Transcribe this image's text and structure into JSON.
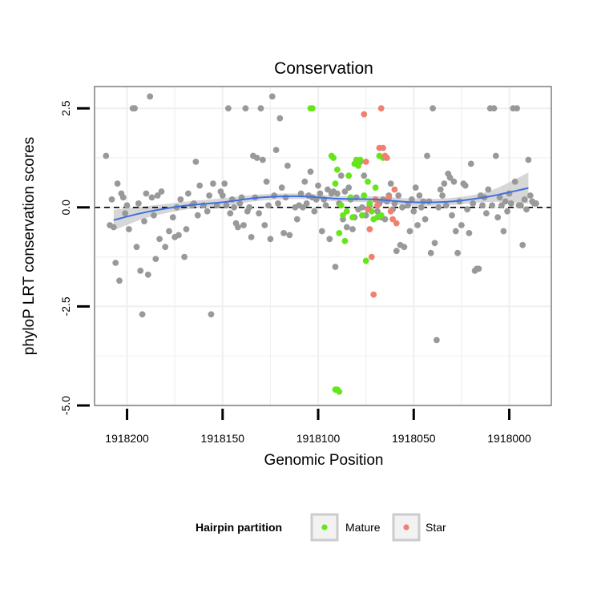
{
  "colors": {
    "other": "#999999",
    "mature": "#66e61a",
    "star": "#f08070",
    "smooth": "#3f6fe0",
    "ribbon": "#d0d0d0",
    "panel_border": "#7f7f7f",
    "grid": "#f0f0f0",
    "zero_line": "#000000"
  },
  "chart_data": {
    "type": "scatter",
    "title": "Conservation",
    "xlabel": "Genomic Position",
    "ylabel": "phyloP LRT conservation scores",
    "xlim": [
      1918217,
      1917978
    ],
    "x_reversed": true,
    "ylim": [
      -5.0,
      3.05
    ],
    "x_ticks": [
      1918200,
      1918150,
      1918100,
      1918050,
      1918000
    ],
    "x_tick_labels": [
      "1918200",
      "1918150",
      "1918100",
      "1918050",
      "1918000"
    ],
    "y_ticks": [
      -5.0,
      -2.5,
      0.0,
      2.5
    ],
    "y_tick_labels": [
      "-5.0",
      "-2.5",
      "0.0",
      "2.5"
    ],
    "grid": true,
    "reference_line": {
      "y": 0,
      "style": "dashed"
    },
    "smooth": {
      "x": [
        1918207,
        1918190,
        1918170,
        1918150,
        1918130,
        1918110,
        1918090,
        1918070,
        1918050,
        1918030,
        1918010,
        1917990
      ],
      "y": [
        -0.32,
        -0.12,
        0.04,
        0.13,
        0.25,
        0.28,
        0.22,
        0.2,
        0.13,
        0.15,
        0.28,
        0.49
      ],
      "lower": [
        -0.58,
        -0.27,
        -0.06,
        0.03,
        0.17,
        0.21,
        0.15,
        0.12,
        0.04,
        0.06,
        0.14,
        0.1
      ],
      "upper": [
        -0.06,
        0.03,
        0.14,
        0.23,
        0.33,
        0.35,
        0.29,
        0.28,
        0.22,
        0.24,
        0.42,
        0.88
      ]
    },
    "legend": {
      "title": "Hairpin partition",
      "position": "bottom",
      "entries": [
        {
          "name": "Mature",
          "color": "#66e61a"
        },
        {
          "name": "Star",
          "color": "#f08070"
        }
      ]
    },
    "series": [
      {
        "group": "other",
        "points": [
          [
            1918211,
            1.3
          ],
          [
            1918209,
            -0.45
          ],
          [
            1918208,
            0.2
          ],
          [
            1918207,
            -0.5
          ],
          [
            1918206,
            -1.4
          ],
          [
            1918205,
            0.6
          ],
          [
            1918204,
            -1.85
          ],
          [
            1918203,
            0.35
          ],
          [
            1918202,
            0.25
          ],
          [
            1918201,
            -0.15
          ],
          [
            1918200,
            0.05
          ],
          [
            1918199,
            -0.55
          ],
          [
            1918197,
            2.5
          ],
          [
            1918196,
            2.5
          ],
          [
            1918195,
            -1.0
          ],
          [
            1918194,
            0.1
          ],
          [
            1918193,
            -1.6
          ],
          [
            1918192,
            -2.7
          ],
          [
            1918191,
            -0.35
          ],
          [
            1918190,
            0.35
          ],
          [
            1918189,
            -1.7
          ],
          [
            1918188,
            2.8
          ],
          [
            1918187,
            0.25
          ],
          [
            1918186,
            -0.2
          ],
          [
            1918185,
            -1.3
          ],
          [
            1918184,
            0.3
          ],
          [
            1918183,
            -0.8
          ],
          [
            1918182,
            0.4
          ],
          [
            1918180,
            -1.0
          ],
          [
            1918178,
            -0.6
          ],
          [
            1918176,
            -0.25
          ],
          [
            1918175,
            -0.75
          ],
          [
            1918174,
            0.0
          ],
          [
            1918173,
            -0.7
          ],
          [
            1918172,
            0.2
          ],
          [
            1918170,
            -1.25
          ],
          [
            1918169,
            -0.55
          ],
          [
            1918168,
            0.35
          ],
          [
            1918166,
            0.05
          ],
          [
            1918165,
            0.1
          ],
          [
            1918164,
            1.15
          ],
          [
            1918163,
            -0.2
          ],
          [
            1918162,
            0.55
          ],
          [
            1918160,
            0.05
          ],
          [
            1918158,
            -0.1
          ],
          [
            1918157,
            0.3
          ],
          [
            1918156,
            -2.7
          ],
          [
            1918155,
            0.6
          ],
          [
            1918153,
            0.05
          ],
          [
            1918151,
            0.4
          ],
          [
            1918150,
            0.3
          ],
          [
            1918149,
            0.6
          ],
          [
            1918148,
            0.05
          ],
          [
            1918147,
            2.5
          ],
          [
            1918146,
            -0.15
          ],
          [
            1918145,
            0.2
          ],
          [
            1918144,
            0.0
          ],
          [
            1918143,
            -0.4
          ],
          [
            1918142,
            -0.5
          ],
          [
            1918141,
            0.1
          ],
          [
            1918140,
            0.25
          ],
          [
            1918139,
            -0.45
          ],
          [
            1918138,
            2.5
          ],
          [
            1918137,
            -0.1
          ],
          [
            1918136,
            0.0
          ],
          [
            1918135,
            -0.75
          ],
          [
            1918134,
            1.3
          ],
          [
            1918133,
            0.25
          ],
          [
            1918132,
            1.25
          ],
          [
            1918131,
            -0.15
          ],
          [
            1918130,
            2.5
          ],
          [
            1918129,
            1.2
          ],
          [
            1918128,
            -0.45
          ],
          [
            1918127,
            0.65
          ],
          [
            1918126,
            0.05
          ],
          [
            1918125,
            -0.8
          ],
          [
            1918124,
            2.8
          ],
          [
            1918123,
            0.3
          ],
          [
            1918122,
            1.45
          ],
          [
            1918121,
            0.1
          ],
          [
            1918120,
            2.25
          ],
          [
            1918119,
            0.5
          ],
          [
            1918118,
            -0.65
          ],
          [
            1918117,
            0.25
          ],
          [
            1918116,
            1.05
          ],
          [
            1918115,
            -0.7
          ],
          [
            1918112,
            0.0
          ],
          [
            1918111,
            -0.3
          ],
          [
            1918110,
            0.05
          ],
          [
            1918109,
            0.35
          ],
          [
            1918108,
            0.0
          ],
          [
            1918107,
            0.65
          ],
          [
            1918106,
            0.1
          ],
          [
            1918105,
            0.3
          ],
          [
            1918104,
            0.9
          ],
          [
            1918103,
            0.25
          ],
          [
            1918102,
            -0.1
          ],
          [
            1918101,
            0.2
          ],
          [
            1918100,
            0.55
          ],
          [
            1918099,
            0.35
          ],
          [
            1918098,
            -0.6
          ],
          [
            1918097,
            0.2
          ],
          [
            1918096,
            0.05
          ],
          [
            1918095,
            0.45
          ],
          [
            1918094,
            -0.8
          ],
          [
            1918093,
            0.35
          ],
          [
            1918092,
            0.4
          ],
          [
            1918091,
            -1.5
          ],
          [
            1918090,
            0.35
          ],
          [
            1918089,
            0.1
          ],
          [
            1918088,
            0.8
          ],
          [
            1918087,
            -0.3
          ],
          [
            1918086,
            0.4
          ],
          [
            1918085,
            -0.5
          ],
          [
            1918084,
            0.5
          ],
          [
            1918083,
            0.2
          ],
          [
            1918082,
            -0.55
          ],
          [
            1918081,
            -0.25
          ],
          [
            1918080,
            0.25
          ],
          [
            1918079,
            -0.05
          ],
          [
            1918078,
            1.15
          ],
          [
            1918077,
            0.0
          ],
          [
            1918076,
            0.8
          ],
          [
            1918075,
            -0.2
          ],
          [
            1918074,
            -0.05
          ],
          [
            1918073,
            0.05
          ],
          [
            1918069,
            -0.1
          ],
          [
            1918068,
            0.1
          ],
          [
            1918067,
            -0.25
          ],
          [
            1918066,
            0.2
          ],
          [
            1918065,
            -0.3
          ],
          [
            1918064,
            0.15
          ],
          [
            1918063,
            0.3
          ],
          [
            1918062,
            0.6
          ],
          [
            1918061,
            -0.05
          ],
          [
            1918060,
            0.1
          ],
          [
            1918059,
            -1.1
          ],
          [
            1918058,
            0.3
          ],
          [
            1918057,
            -0.95
          ],
          [
            1918056,
            0.0
          ],
          [
            1918055,
            -1.0
          ],
          [
            1918053,
            0.05
          ],
          [
            1918052,
            -0.6
          ],
          [
            1918051,
            0.2
          ],
          [
            1918050,
            -0.1
          ],
          [
            1918049,
            0.5
          ],
          [
            1918048,
            -0.45
          ],
          [
            1918047,
            0.3
          ],
          [
            1918046,
            0.0
          ],
          [
            1918045,
            0.15
          ],
          [
            1918044,
            -0.3
          ],
          [
            1918043,
            1.3
          ],
          [
            1918042,
            0.15
          ],
          [
            1918041,
            -1.15
          ],
          [
            1918040,
            2.5
          ],
          [
            1918039,
            -0.9
          ],
          [
            1918038,
            -3.35
          ],
          [
            1918037,
            0.0
          ],
          [
            1918036,
            0.45
          ],
          [
            1918035,
            0.3
          ],
          [
            1918034,
            0.6
          ],
          [
            1918033,
            0.05
          ],
          [
            1918032,
            0.85
          ],
          [
            1918031,
            0.75
          ],
          [
            1918030,
            -0.2
          ],
          [
            1918029,
            0.65
          ],
          [
            1918028,
            -0.6
          ],
          [
            1918027,
            -1.15
          ],
          [
            1918026,
            0.15
          ],
          [
            1918025,
            -0.45
          ],
          [
            1918024,
            0.6
          ],
          [
            1918023,
            0.55
          ],
          [
            1918022,
            -0.05
          ],
          [
            1918021,
            -0.65
          ],
          [
            1918020,
            1.1
          ],
          [
            1918019,
            0.1
          ],
          [
            1918018,
            -1.6
          ],
          [
            1918017,
            -1.55
          ],
          [
            1918016,
            -1.55
          ],
          [
            1918015,
            0.3
          ],
          [
            1918014,
            0.05
          ],
          [
            1918013,
            0.25
          ],
          [
            1918012,
            -0.15
          ],
          [
            1918011,
            0.45
          ],
          [
            1918010,
            2.5
          ],
          [
            1918009,
            0.05
          ],
          [
            1918008,
            2.5
          ],
          [
            1918007,
            1.3
          ],
          [
            1918006,
            -0.25
          ],
          [
            1918005,
            0.25
          ],
          [
            1918004,
            0.05
          ],
          [
            1918003,
            -0.6
          ],
          [
            1918002,
            0.15
          ],
          [
            1918001,
            -0.1
          ],
          [
            1918000,
            0.35
          ],
          [
            1917999,
            0.1
          ],
          [
            1917998,
            2.5
          ],
          [
            1917997,
            0.65
          ],
          [
            1917996,
            2.5
          ],
          [
            1917995,
            0.05
          ],
          [
            1917994,
            0.05
          ],
          [
            1917993,
            -0.95
          ],
          [
            1917992,
            0.2
          ],
          [
            1917991,
            -0.05
          ],
          [
            1917990,
            1.2
          ],
          [
            1917989,
            0.3
          ],
          [
            1917988,
            0.15
          ],
          [
            1917987,
            0.1
          ],
          [
            1917986,
            0.1
          ]
        ]
      },
      {
        "name": "Mature",
        "points": [
          [
            1918104,
            2.5
          ],
          [
            1918103,
            2.5
          ],
          [
            1918093,
            1.3
          ],
          [
            1918092,
            1.25
          ],
          [
            1918091,
            0.6
          ],
          [
            1918090,
            0.95
          ],
          [
            1918089,
            -0.65
          ],
          [
            1918088,
            0.05
          ],
          [
            1918087,
            -0.2
          ],
          [
            1918086,
            -0.85
          ],
          [
            1918085,
            -0.1
          ],
          [
            1918084,
            0.8
          ],
          [
            1918083,
            0.25
          ],
          [
            1918082,
            -0.25
          ],
          [
            1918081,
            1.1
          ],
          [
            1918080,
            1.2
          ],
          [
            1918079,
            1.05
          ],
          [
            1918078,
            1.2
          ],
          [
            1918077,
            -0.2
          ],
          [
            1918076,
            0.3
          ],
          [
            1918075,
            -1.35
          ],
          [
            1918074,
            0.65
          ],
          [
            1918073,
            0.1
          ],
          [
            1918072,
            -0.1
          ],
          [
            1918071,
            -0.3
          ],
          [
            1918070,
            0.5
          ],
          [
            1918069,
            -0.25
          ],
          [
            1918068,
            1.3
          ],
          [
            1918067,
            -0.2
          ],
          [
            1918066,
            1.25
          ],
          [
            1918091,
            -4.6
          ],
          [
            1918090,
            -4.6
          ],
          [
            1918089,
            -4.65
          ]
        ]
      },
      {
        "name": "Star",
        "points": [
          [
            1918076,
            2.35
          ],
          [
            1918075,
            1.15
          ],
          [
            1918074,
            -0.05
          ],
          [
            1918073,
            -0.55
          ],
          [
            1918072,
            -1.25
          ],
          [
            1918071,
            -2.2
          ],
          [
            1918070,
            0.2
          ],
          [
            1918069,
            0.05
          ],
          [
            1918068,
            1.5
          ],
          [
            1918067,
            2.5
          ],
          [
            1918066,
            1.5
          ],
          [
            1918065,
            1.3
          ],
          [
            1918064,
            1.25
          ],
          [
            1918063,
            0.25
          ],
          [
            1918062,
            -0.1
          ],
          [
            1918061,
            -0.3
          ],
          [
            1918060,
            0.45
          ],
          [
            1918059,
            -0.4
          ]
        ]
      }
    ]
  }
}
